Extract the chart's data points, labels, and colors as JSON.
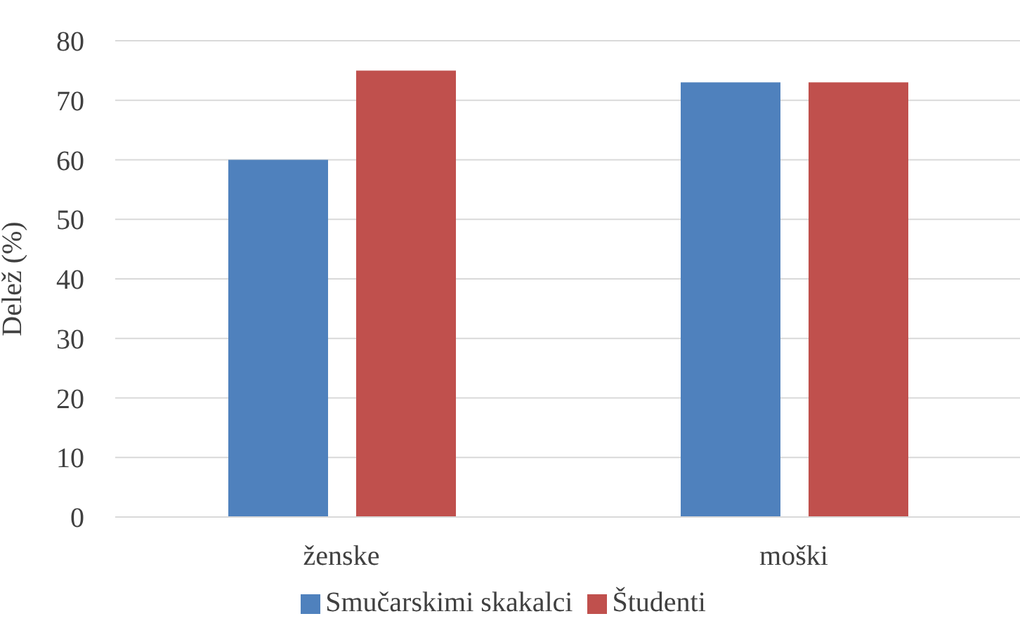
{
  "chart_data": {
    "type": "bar",
    "ylabel": "Delež (%)",
    "categories": [
      "ženske",
      "moški"
    ],
    "series": [
      {
        "name": "Smučarskimi skakalci",
        "color": "#4f81bd",
        "values": [
          60,
          73
        ]
      },
      {
        "name": "Študenti",
        "color": "#c0504d",
        "values": [
          75,
          73
        ]
      }
    ],
    "ylim": [
      0,
      80
    ],
    "yticks": [
      0,
      10,
      20,
      30,
      40,
      50,
      60,
      70,
      80
    ],
    "grid": "y",
    "legend": "bottom"
  }
}
